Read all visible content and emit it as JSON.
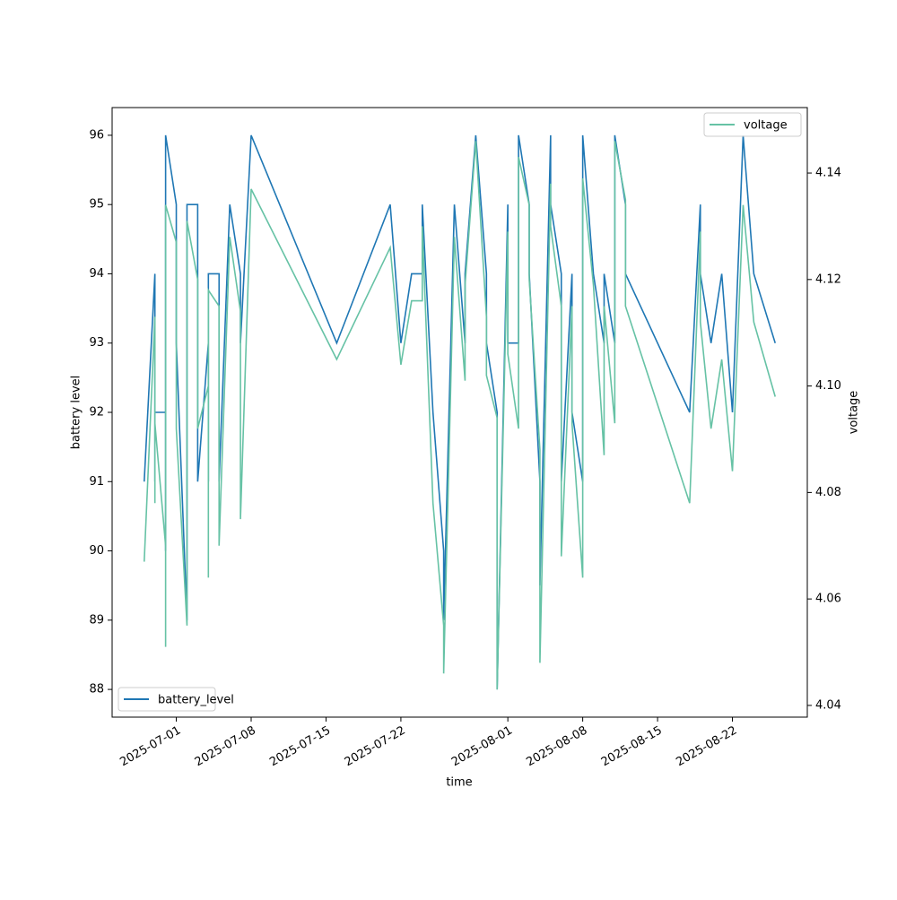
{
  "chart_data": {
    "type": "line",
    "x_label": "time",
    "y_label": "battery level",
    "y2_label": "voltage",
    "x": [
      "2025-06-28",
      "2025-06-29",
      "2025-06-29",
      "2025-06-29",
      "2025-06-30",
      "2025-06-30",
      "2025-06-30",
      "2025-06-30",
      "2025-07-01",
      "2025-07-01",
      "2025-07-01",
      "2025-07-01",
      "2025-07-02",
      "2025-07-02",
      "2025-07-03",
      "2025-07-03",
      "2025-07-03",
      "2025-07-04",
      "2025-07-04",
      "2025-07-04",
      "2025-07-05",
      "2025-07-05",
      "2025-07-05",
      "2025-07-06",
      "2025-07-07",
      "2025-07-07",
      "2025-07-08",
      "2025-07-16",
      "2025-07-21",
      "2025-07-22",
      "2025-07-23",
      "2025-07-24",
      "2025-07-24",
      "2025-07-25",
      "2025-07-26",
      "2025-07-26",
      "2025-07-27",
      "2025-07-28",
      "2025-07-28",
      "2025-07-29",
      "2025-07-30",
      "2025-07-30",
      "2025-07-31",
      "2025-07-31",
      "2025-07-31",
      "2025-08-01",
      "2025-08-01",
      "2025-08-02",
      "2025-08-02",
      "2025-08-03",
      "2025-08-03",
      "2025-08-04",
      "2025-08-04",
      "2025-08-05",
      "2025-08-05",
      "2025-08-06",
      "2025-08-06",
      "2025-08-07",
      "2025-08-07",
      "2025-08-08",
      "2025-08-08",
      "2025-08-09",
      "2025-08-10",
      "2025-08-10",
      "2025-08-11",
      "2025-08-11",
      "2025-08-12",
      "2025-08-12",
      "2025-08-18",
      "2025-08-19",
      "2025-08-19",
      "2025-08-20",
      "2025-08-21",
      "2025-08-22",
      "2025-08-23",
      "2025-08-24",
      "2025-08-26"
    ],
    "series": [
      {
        "name": "battery_level",
        "color": "#1f77b4",
        "axis": "y",
        "legend": "lower left",
        "values": [
          91,
          94,
          91,
          92,
          92,
          91,
          90,
          96,
          95,
          93,
          94,
          93,
          89,
          95,
          95,
          94,
          91,
          93,
          91,
          94,
          94,
          92,
          91,
          95,
          94,
          93,
          96,
          93,
          95,
          93,
          94,
          94,
          95,
          92,
          90,
          89,
          95,
          93,
          94,
          96,
          94,
          93,
          92,
          91,
          88,
          95,
          93,
          93,
          96,
          95,
          94,
          91,
          89.5,
          96,
          95,
          94,
          91,
          94,
          92,
          91,
          96,
          94,
          93,
          94,
          93,
          96,
          95,
          94,
          92,
          95,
          94,
          93,
          94,
          92,
          96,
          94,
          93
        ]
      },
      {
        "name": "voltage",
        "color": "#66c2a5",
        "axis": "y2",
        "legend": "upper right",
        "values": [
          4.067,
          4.113,
          4.078,
          4.093,
          4.07,
          4.068,
          4.051,
          4.134,
          4.127,
          4.1,
          4.12,
          4.092,
          4.055,
          4.131,
          4.12,
          4.119,
          4.092,
          4.1,
          4.064,
          4.118,
          4.115,
          4.089,
          4.07,
          4.128,
          4.114,
          4.075,
          4.137,
          4.105,
          4.126,
          4.104,
          4.116,
          4.116,
          4.13,
          4.078,
          4.055,
          4.046,
          4.128,
          4.101,
          4.119,
          4.146,
          4.113,
          4.102,
          4.094,
          4.078,
          4.043,
          4.129,
          4.106,
          4.092,
          4.143,
          4.134,
          4.12,
          4.088,
          4.048,
          4.138,
          4.13,
          4.115,
          4.068,
          4.115,
          4.093,
          4.064,
          4.139,
          4.119,
          4.087,
          4.115,
          4.093,
          4.146,
          4.135,
          4.115,
          4.078,
          4.129,
          4.112,
          4.092,
          4.105,
          4.084,
          4.134,
          4.112,
          4.098
        ]
      }
    ],
    "xlim": [
      "2025-06-25",
      "2025-08-29"
    ],
    "xticks": [
      "2025-07-01",
      "2025-07-08",
      "2025-07-15",
      "2025-07-22",
      "2025-08-01",
      "2025-08-08",
      "2025-08-15",
      "2025-08-22"
    ],
    "ylim": [
      87.6,
      96.4
    ],
    "yticks": [
      88,
      89,
      90,
      91,
      92,
      93,
      94,
      95,
      96
    ],
    "y2lim": [
      4.0378,
      4.1523
    ],
    "y2ticks": [
      4.04,
      4.06,
      4.08,
      {
        "value": 4.1,
        "label": "4.10"
      },
      4.12,
      4.14
    ]
  }
}
